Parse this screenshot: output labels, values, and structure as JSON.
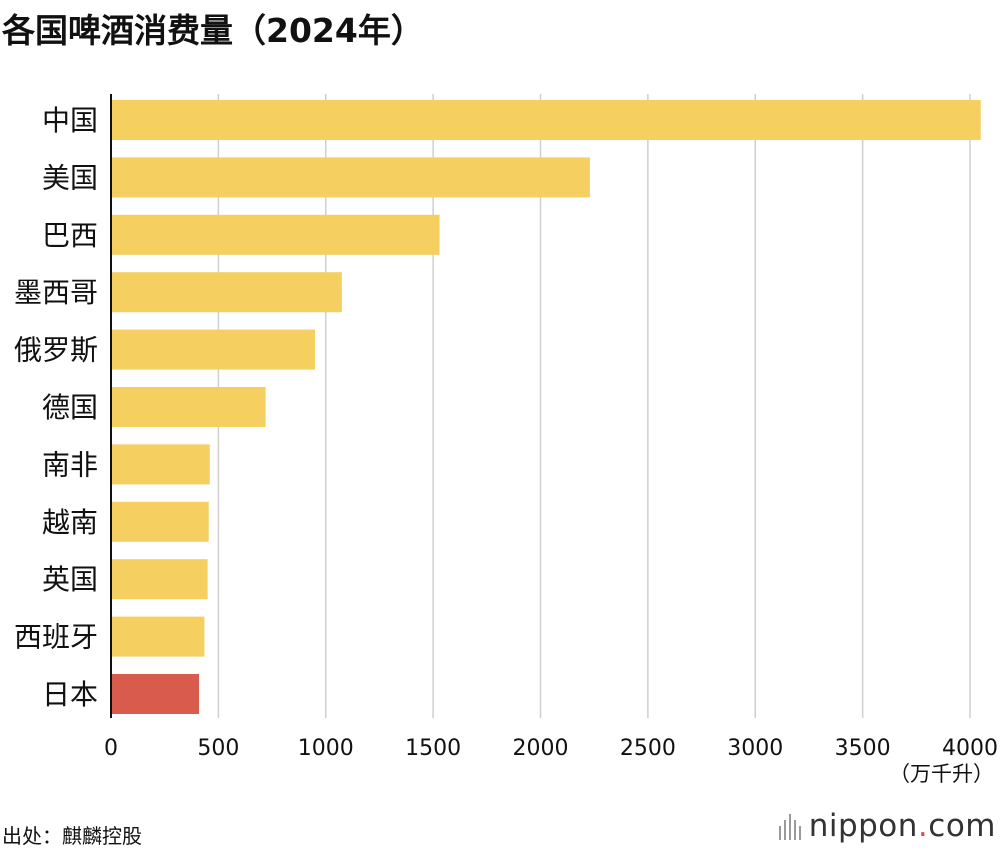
{
  "title": "各国啤酒消费量（2024年）",
  "unit_label": "（万千升）",
  "source_label": "出处：麒麟控股",
  "brand": {
    "name_before_dot": "nippon",
    "dot": ".",
    "name_after_dot": "com"
  },
  "colors": {
    "bar": "#f5cf60",
    "highlight": "#d95b4e",
    "grid": "#cfcfcf",
    "axis": "#111111"
  },
  "chart_data": {
    "type": "bar",
    "orientation": "horizontal",
    "title": "各国啤酒消费量（2024年）",
    "xlabel": "（万千升）",
    "ylabel": "",
    "xlim": [
      0,
      4000
    ],
    "xticks": [
      0,
      500,
      1000,
      1500,
      2000,
      2500,
      3000,
      3500,
      4000
    ],
    "grid": true,
    "categories": [
      "中国",
      "美国",
      "巴西",
      "墨西哥",
      "俄罗斯",
      "德国",
      "南非",
      "越南",
      "英国",
      "西班牙",
      "日本"
    ],
    "values": [
      4050,
      2230,
      1530,
      1075,
      950,
      720,
      460,
      455,
      450,
      435,
      410
    ],
    "highlight": "日本"
  }
}
